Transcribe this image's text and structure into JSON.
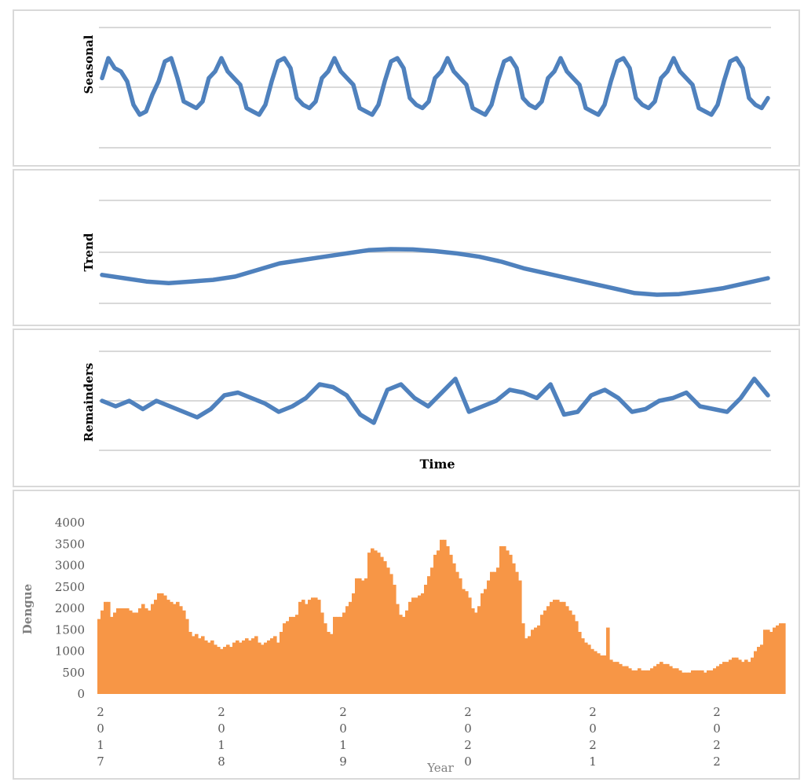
{
  "colors": {
    "line": "#4f81bd",
    "bar": "#f79646",
    "grid": "#d9d9d9",
    "panel_border": "#d9d9d9"
  },
  "chart_data": [
    {
      "type": "line",
      "ylabel": "Seasonal",
      "gridlines": 3,
      "grid": true,
      "series": [
        {
          "values": [
            0.3,
            0.9,
            0.6,
            0.5,
            0.2,
            -0.5,
            -0.8,
            -0.7,
            -0.2,
            0.2,
            0.8,
            0.9,
            0.3,
            -0.4,
            -0.5,
            -0.6,
            -0.4,
            0.3,
            0.5,
            0.9,
            0.5,
            0.3,
            0.1,
            -0.6,
            -0.7,
            -0.8,
            -0.5,
            0.2,
            0.8,
            0.9,
            0.6,
            -0.3,
            -0.5,
            -0.6,
            -0.4,
            0.3,
            0.5,
            0.9,
            0.5,
            0.3,
            0.1,
            -0.6,
            -0.7,
            -0.8,
            -0.5,
            0.2,
            0.8,
            0.9,
            0.6,
            -0.3,
            -0.5,
            -0.6,
            -0.4,
            0.3,
            0.5,
            0.9,
            0.5,
            0.3,
            0.1,
            -0.6,
            -0.7,
            -0.8,
            -0.5,
            0.2,
            0.8,
            0.9,
            0.6,
            -0.3,
            -0.5,
            -0.6,
            -0.4,
            0.3,
            0.5,
            0.9,
            0.5,
            0.3,
            0.1,
            -0.6,
            -0.7,
            -0.8,
            -0.5,
            0.2,
            0.8,
            0.9,
            0.6,
            -0.3,
            -0.5,
            -0.6,
            -0.4,
            0.3,
            0.5,
            0.9,
            0.5,
            0.3,
            0.1,
            -0.6,
            -0.7,
            -0.8,
            -0.5,
            0.2,
            0.8,
            0.9,
            0.6,
            -0.3,
            -0.5,
            -0.6,
            -0.3
          ]
        }
      ]
    },
    {
      "type": "line",
      "ylabel": "Trend",
      "gridlines": 3,
      "grid": true,
      "series": [
        {
          "values": [
            -0.1,
            -0.2,
            -0.3,
            -0.35,
            -0.3,
            -0.25,
            -0.15,
            0.05,
            0.25,
            0.35,
            0.45,
            0.55,
            0.65,
            0.68,
            0.67,
            0.62,
            0.55,
            0.45,
            0.3,
            0.1,
            -0.05,
            -0.2,
            -0.35,
            -0.5,
            -0.65,
            -0.7,
            -0.68,
            -0.6,
            -0.5,
            -0.35,
            -0.2
          ]
        }
      ]
    },
    {
      "type": "line",
      "ylabel": "Remainders",
      "xlabel": "Time",
      "gridlines": 3,
      "grid": true,
      "series": [
        {
          "values": [
            0,
            -0.1,
            0,
            -0.15,
            0,
            -0.1,
            -0.2,
            -0.3,
            -0.15,
            0.1,
            0.15,
            0.05,
            -0.05,
            -0.2,
            -0.1,
            0.05,
            0.3,
            0.25,
            0.1,
            -0.25,
            -0.4,
            0.2,
            0.3,
            0.05,
            -0.1,
            0.15,
            0.4,
            -0.2,
            -0.1,
            0,
            0.2,
            0.15,
            0.05,
            0.3,
            -0.25,
            -0.2,
            0.1,
            0.2,
            0.05,
            -0.2,
            -0.15,
            0,
            0.05,
            0.15,
            -0.1,
            -0.15,
            -0.2,
            0.05,
            0.4,
            0.1
          ]
        }
      ]
    },
    {
      "type": "bar",
      "ylabel": "Dengue",
      "xlabel": "Year",
      "ylim": [
        0,
        4000
      ],
      "yticks": [
        "0",
        "500",
        "1000",
        "1500",
        "2000",
        "2500",
        "3000",
        "3500",
        "4000"
      ],
      "xticks": [
        [
          "2",
          "0",
          "1",
          "7"
        ],
        [
          "2",
          "0",
          "1",
          "8"
        ],
        [
          "2",
          "0",
          "1",
          "9"
        ],
        [
          "2",
          "0",
          "2",
          "0"
        ],
        [
          "2",
          "0",
          "2",
          "1"
        ],
        [
          "2",
          "0",
          "2",
          "2"
        ]
      ],
      "values": [
        1750,
        1950,
        2150,
        2150,
        1800,
        1900,
        2000,
        2000,
        2000,
        2000,
        1950,
        1900,
        1900,
        2000,
        2100,
        2000,
        1950,
        2100,
        2200,
        2350,
        2350,
        2300,
        2200,
        2150,
        2100,
        2150,
        2050,
        1950,
        1750,
        1450,
        1350,
        1400,
        1300,
        1350,
        1250,
        1200,
        1250,
        1150,
        1100,
        1050,
        1100,
        1150,
        1100,
        1200,
        1250,
        1200,
        1250,
        1300,
        1250,
        1300,
        1350,
        1200,
        1150,
        1200,
        1250,
        1300,
        1350,
        1200,
        1450,
        1650,
        1700,
        1800,
        1800,
        1850,
        2150,
        2200,
        2100,
        2200,
        2250,
        2250,
        2200,
        1900,
        1650,
        1450,
        1400,
        1800,
        1800,
        1800,
        1900,
        2050,
        2150,
        2350,
        2700,
        2700,
        2650,
        2700,
        3300,
        3400,
        3350,
        3300,
        3200,
        3100,
        2950,
        2800,
        2550,
        2100,
        1850,
        1800,
        1950,
        2150,
        2250,
        2250,
        2300,
        2350,
        2550,
        2750,
        2950,
        3250,
        3350,
        3600,
        3600,
        3450,
        3250,
        3050,
        2850,
        2700,
        2450,
        2400,
        2250,
        2000,
        1900,
        2050,
        2350,
        2450,
        2650,
        2850,
        2850,
        2950,
        3450,
        3450,
        3350,
        3250,
        3050,
        2850,
        2650,
        1650,
        1300,
        1350,
        1500,
        1550,
        1600,
        1850,
        1950,
        2050,
        2150,
        2200,
        2200,
        2150,
        2150,
        2050,
        1950,
        1850,
        1700,
        1450,
        1300,
        1200,
        1150,
        1050,
        1000,
        950,
        900,
        900,
        1550,
        800,
        750,
        750,
        700,
        650,
        650,
        600,
        550,
        550,
        600,
        550,
        550,
        550,
        600,
        650,
        700,
        750,
        700,
        700,
        650,
        600,
        600,
        550,
        500,
        500,
        500,
        550,
        550,
        550,
        550,
        500,
        550,
        550,
        600,
        650,
        700,
        750,
        750,
        800,
        850,
        850,
        800,
        750,
        800,
        750,
        850,
        1000,
        1100,
        1150,
        1500,
        1500,
        1450,
        1550,
        1600,
        1650,
        1650
      ]
    }
  ]
}
